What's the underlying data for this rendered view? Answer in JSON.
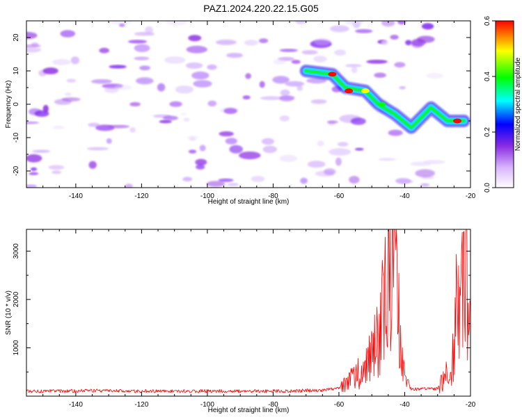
{
  "page_title": "PAZ1.2024.220.22.15.G05",
  "chart_data": [
    {
      "type": "heatmap",
      "xlabel": "Height of straight line (km)",
      "ylabel": "Frequency (Hz)",
      "xlim": [
        -155,
        -20
      ],
      "ylim": [
        -25,
        25
      ],
      "x_ticks": [
        -140,
        -120,
        -100,
        -80,
        -60,
        -40,
        -20
      ],
      "y_ticks": [
        -20,
        -10,
        0,
        10,
        20
      ],
      "colorbar": {
        "label": "Normalized spectral amplitude",
        "range": [
          0.0,
          0.6
        ],
        "ticks": [
          "0.0",
          "0.2",
          "0.4",
          "0.6"
        ],
        "colors": [
          "#ffffff",
          "#8a2be2",
          "#0000ff",
          "#00ffff",
          "#00ff00",
          "#ffff00",
          "#ff0000"
        ]
      },
      "signal_track": [
        {
          "x": -70,
          "y": 10
        },
        {
          "x": -62,
          "y": 9
        },
        {
          "x": -58,
          "y": 5
        },
        {
          "x": -52,
          "y": 4
        },
        {
          "x": -48,
          "y": 0
        },
        {
          "x": -43,
          "y": -3
        },
        {
          "x": -38,
          "y": -7
        },
        {
          "x": -32,
          "y": -1
        },
        {
          "x": -27,
          "y": -5
        },
        {
          "x": -22,
          "y": -5
        }
      ]
    },
    {
      "type": "line",
      "xlabel": "Height of straight line (km)",
      "ylabel": "SNR (10 * v/v)",
      "xlim": [
        -155,
        -20
      ],
      "ylim": [
        0,
        3450
      ],
      "x_ticks": [
        -140,
        -120,
        -100,
        -80,
        -60,
        -40,
        -20
      ],
      "y_ticks": [
        1000,
        2000,
        3000
      ],
      "series": [
        {
          "color": "#ff0000",
          "x": [
            -155,
            -145,
            -135,
            -125,
            -115,
            -105,
            -95,
            -85,
            -75,
            -65,
            -60,
            -56,
            -52,
            -50,
            -48,
            -46,
            -45,
            -44,
            -43.5,
            -43,
            -42,
            -41,
            -40,
            -38,
            -35,
            -30,
            -27,
            -25,
            -24,
            -23,
            -22,
            -21,
            -20
          ],
          "values": [
            100,
            100,
            110,
            100,
            100,
            100,
            100,
            100,
            100,
            120,
            170,
            350,
            600,
            850,
            1300,
            2100,
            2400,
            2600,
            3400,
            2500,
            1800,
            1000,
            300,
            150,
            140,
            150,
            450,
            900,
            2200,
            1600,
            2600,
            2800,
            1400
          ]
        }
      ]
    }
  ]
}
